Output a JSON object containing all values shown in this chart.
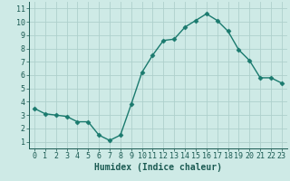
{
  "x": [
    0,
    1,
    2,
    3,
    4,
    5,
    6,
    7,
    8,
    9,
    10,
    11,
    12,
    13,
    14,
    15,
    16,
    17,
    18,
    19,
    20,
    21,
    22,
    23
  ],
  "y": [
    3.5,
    3.1,
    3.0,
    2.9,
    2.5,
    2.5,
    1.5,
    1.1,
    1.5,
    3.8,
    6.2,
    7.5,
    8.6,
    8.7,
    9.6,
    10.1,
    10.6,
    10.1,
    9.3,
    7.9,
    7.1,
    5.8,
    5.8,
    5.4
  ],
  "line_color": "#1a7a6e",
  "marker": "D",
  "marker_size": 2.5,
  "bg_color": "#ceeae6",
  "grid_color": "#aed0cc",
  "xlabel": "Humidex (Indice chaleur)",
  "xlim": [
    -0.5,
    23.5
  ],
  "ylim": [
    0.5,
    11.5
  ],
  "yticks": [
    1,
    2,
    3,
    4,
    5,
    6,
    7,
    8,
    9,
    10,
    11
  ],
  "xticks": [
    0,
    1,
    2,
    3,
    4,
    5,
    6,
    7,
    8,
    9,
    10,
    11,
    12,
    13,
    14,
    15,
    16,
    17,
    18,
    19,
    20,
    21,
    22,
    23
  ],
  "xlabel_fontsize": 7,
  "tick_fontsize": 6,
  "axis_label_color": "#1a5a52",
  "tick_color": "#1a5a52"
}
